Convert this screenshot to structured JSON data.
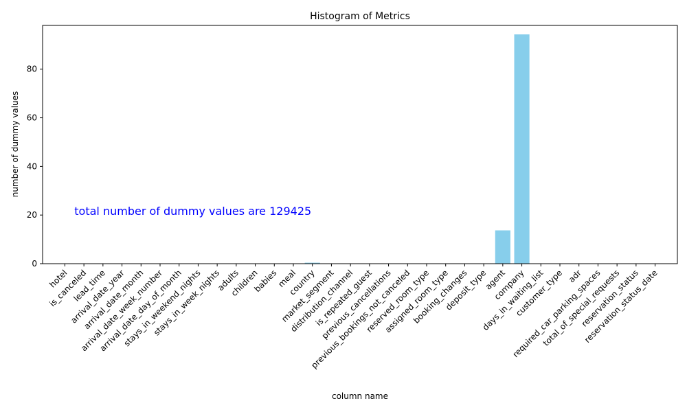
{
  "chart_data": {
    "type": "bar",
    "title": "Histogram of Metrics",
    "xlabel": "column name",
    "ylabel": "number of dummy values",
    "ylim": [
      0,
      98
    ],
    "yticks": [
      0,
      20,
      40,
      60,
      80
    ],
    "grid": false,
    "bar_color": "#87CEEB",
    "annotation": {
      "text": "total number of dummy values are 129425",
      "x": 0.5,
      "y": 20,
      "color": "#0000FF"
    },
    "categories": [
      "hotel",
      "is_canceled",
      "lead_time",
      "arrival_date_year",
      "arrival_date_month",
      "arrival_date_week_number",
      "arrival_date_day_of_month",
      "stays_in_weekend_nights",
      "stays_in_week_nights",
      "adults",
      "children",
      "babies",
      "meal",
      "country",
      "market_segment",
      "distribution_channel",
      "is_repeated_guest",
      "previous_cancellations",
      "previous_bookings_not_canceled",
      "reserved_room_type",
      "assigned_room_type",
      "booking_changes",
      "deposit_type",
      "agent",
      "company",
      "days_in_waiting_list",
      "customer_type",
      "adr",
      "required_car_parking_spaces",
      "total_of_special_requests",
      "reservation_status",
      "reservation_status_date"
    ],
    "values": [
      0,
      0,
      0,
      0,
      0,
      0,
      0,
      0,
      0,
      0,
      0,
      0,
      0,
      0.4,
      0,
      0,
      0,
      0,
      0,
      0,
      0,
      0,
      0,
      13.7,
      94.3,
      0,
      0,
      0,
      0,
      0,
      0,
      0
    ]
  }
}
